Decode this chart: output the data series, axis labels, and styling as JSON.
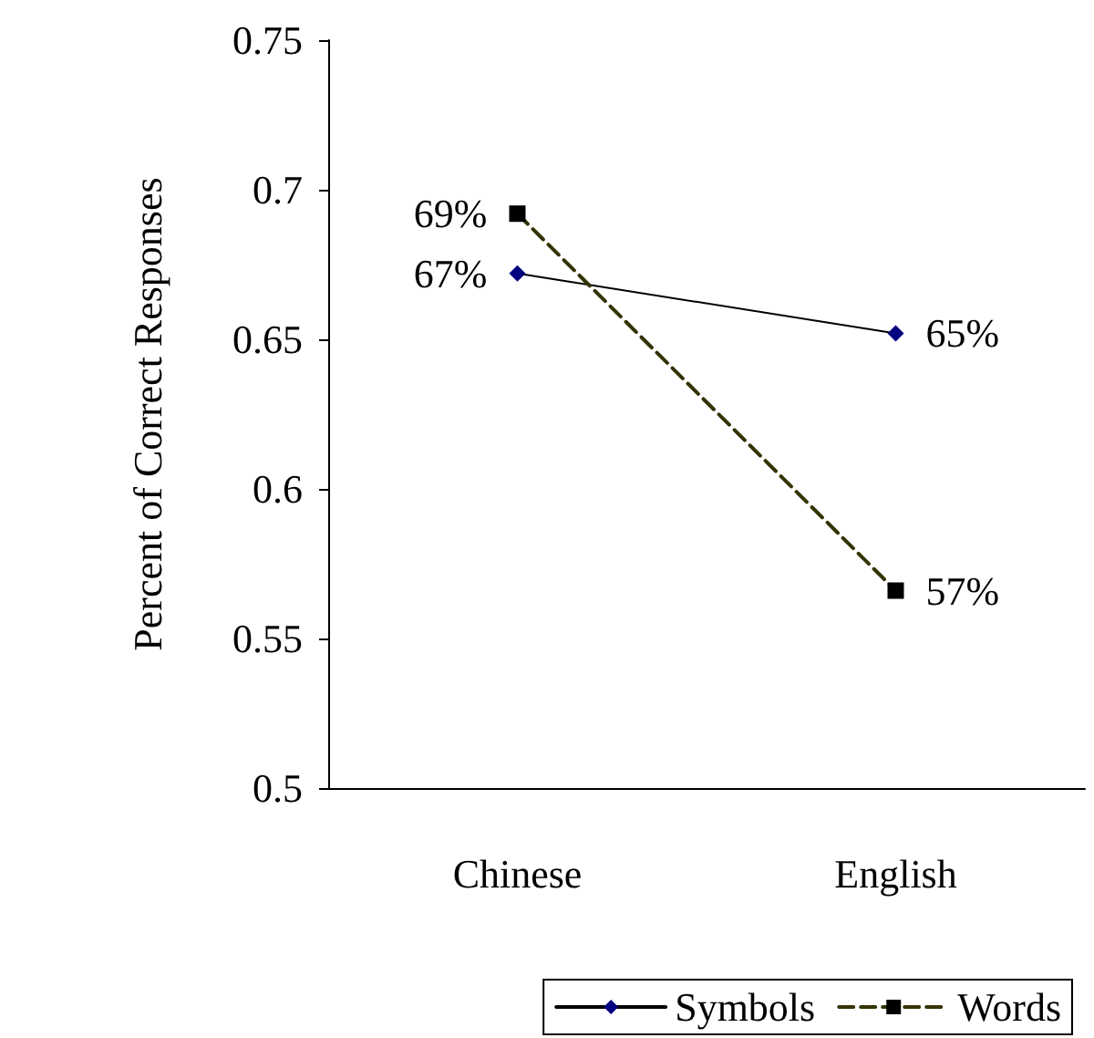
{
  "chart_data": {
    "type": "line",
    "ylabel": "Percent of Correct Responses",
    "categories": [
      "Chinese",
      "English"
    ],
    "series": [
      {
        "name": "Symbols",
        "color": "#000080",
        "values": [
          0.672,
          0.652
        ],
        "value_labels": [
          "67%",
          "65%"
        ],
        "marker": "diamond",
        "line_style": "solid"
      },
      {
        "name": "Words",
        "color": "#000000",
        "values": [
          0.692,
          0.566
        ],
        "value_labels": [
          "69%",
          "57%"
        ],
        "marker": "square",
        "line_style": "dashed"
      }
    ],
    "ylim": [
      0.5,
      0.75
    ],
    "yticks": [
      0.5,
      0.55,
      0.6,
      0.65,
      0.7,
      0.75
    ],
    "grid": false,
    "legend": "bottom"
  }
}
